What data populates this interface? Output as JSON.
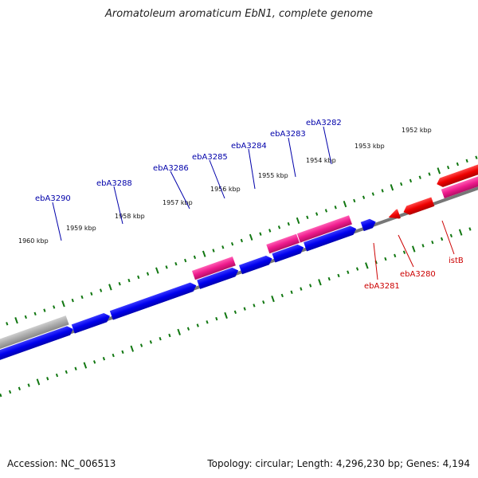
{
  "title": "Aromatoleum aromaticum EbN1, complete genome",
  "footer": {
    "accession": "Accession: NC_006513",
    "topology": "Topology: circular; Length: 4,296,230 bp; Genes: 4,194"
  },
  "colors": {
    "forward_cds": "#0000ee",
    "forward_rna": "#ee1a8c",
    "reverse_cds": "#ee0000",
    "reverse_rna": "#ee1a8c",
    "other": "#aaaaaa",
    "backbone": "#777777",
    "ticks": "#117711",
    "forward_label": "#0000aa",
    "reverse_label": "#cc0000"
  },
  "kbp_ticks": [
    "1952 kbp",
    "1953 kbp",
    "1954 kbp",
    "1955 kbp",
    "1956 kbp",
    "1957 kbp",
    "1958 kbp",
    "1959 kbp",
    "1960 kbp"
  ],
  "gene_labels_forward": [
    "ebA3282",
    "ebA3283",
    "ebA3284",
    "ebA3285",
    "ebA3286",
    "ebA3288",
    "ebA3290"
  ],
  "gene_labels_reverse": [
    "istB",
    "ebA3280",
    "ebA3281"
  ]
}
